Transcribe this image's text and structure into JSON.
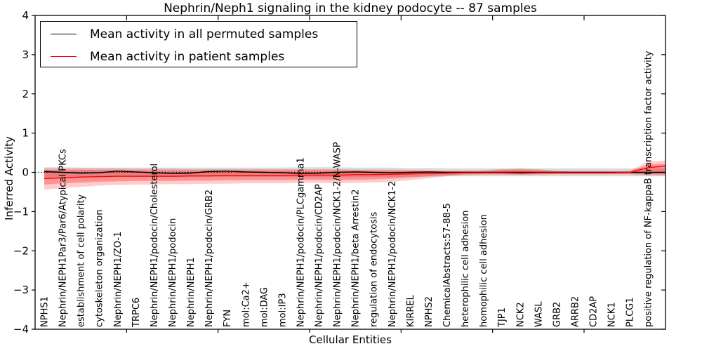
{
  "chart_data": {
    "type": "line",
    "title": "Nephrin/Neph1 signaling in the kidney podocyte -- 87 samples",
    "xlabel": "Cellular Entities",
    "ylabel": "Inferred Activity",
    "ylim": [
      -4,
      4
    ],
    "yticks": [
      -4,
      -3,
      -2,
      -1,
      0,
      1,
      2,
      3,
      4
    ],
    "x_major_ticks": [
      5,
      10,
      15,
      20,
      25,
      30
    ],
    "grid": false,
    "legend_position": "upper left",
    "zero_line": true,
    "categories": [
      "NPHS1",
      "Nephrin/NEPH1Par3/Par6/Atypical PKCs",
      "establishment of cell polarity",
      "cytoskeleton organization",
      "Nephrin/NEPH1/ZO-1",
      "TRPC6",
      "Nephrin/NEPH1/podocin/Cholesterol",
      "Nephrin/NEPH1/podocin",
      "Nephrin/NEPH1",
      "Nephrin/NEPH1/podocin/GRB2",
      "FYN",
      "mol:Ca2+",
      "mol:DAG",
      "mol:IP3",
      "Nephrin/NEPH1/podocin/PLCgamma1",
      "Nephrin/NEPH1/podocin/CD2AP",
      "Nephrin/NEPH1/podocin/NCK1-2/N-WASP",
      "Nephrin/NEPH1/beta Arrestin2",
      "regulation of endocytosis",
      "Nephrin/NEPH1/podocin/NCK1-2",
      "KIRREL",
      "NPHS2",
      "ChemicalAbstracts:57-88-5",
      "heterophilic cell adhesion",
      "homophilic cell adhesion",
      "TJP1",
      "NCK2",
      "WASL",
      "GRB2",
      "ARRB2",
      "CD2AP",
      "NCK1",
      "PLCG1",
      "positive regulation of NF-kappaB transcription factor activity"
    ],
    "series": [
      {
        "name": "Mean activity in all permuted samples",
        "color": "#000000",
        "values": [
          0.02,
          0.0,
          -0.02,
          -0.01,
          0.03,
          0.01,
          -0.01,
          -0.03,
          -0.02,
          0.02,
          0.03,
          0.01,
          0.0,
          -0.01,
          -0.03,
          -0.02,
          0.0,
          0.01,
          0.0,
          -0.01,
          0.0,
          0.01,
          0.0,
          0.0,
          0.0,
          0.0,
          0.0,
          0.0,
          0.0,
          0.0,
          0.0,
          0.0,
          0.0,
          0.0
        ]
      },
      {
        "name": "Mean activity in patient samples",
        "color": "#ff0000",
        "values": [
          -0.16,
          -0.14,
          -0.12,
          -0.11,
          -0.1,
          -0.1,
          -0.1,
          -0.1,
          -0.09,
          -0.09,
          -0.08,
          -0.08,
          -0.08,
          -0.08,
          -0.07,
          -0.07,
          -0.07,
          -0.06,
          -0.06,
          -0.05,
          -0.04,
          -0.03,
          -0.02,
          -0.01,
          -0.01,
          -0.01,
          -0.02,
          -0.01,
          -0.01,
          -0.01,
          -0.01,
          -0.01,
          0.0,
          0.12
        ]
      }
    ],
    "bands": [
      {
        "name": "permuted-samples-std-band",
        "color": "#888888",
        "opacity": 0.3,
        "top": [
          0.13,
          0.13,
          0.12,
          0.12,
          0.12,
          0.12,
          0.12,
          0.12,
          0.12,
          0.12,
          0.12,
          0.12,
          0.12,
          0.12,
          0.13,
          0.13,
          0.13,
          0.12,
          0.12,
          0.12,
          0.11,
          0.11,
          0.1,
          0.1,
          0.1,
          0.1,
          0.1,
          0.1,
          0.1,
          0.1,
          0.1,
          0.1,
          0.1,
          0.1
        ],
        "bottom": [
          -0.13,
          -0.13,
          -0.12,
          -0.12,
          -0.12,
          -0.12,
          -0.12,
          -0.12,
          -0.12,
          -0.12,
          -0.12,
          -0.12,
          -0.12,
          -0.12,
          -0.13,
          -0.13,
          -0.13,
          -0.12,
          -0.12,
          -0.12,
          -0.11,
          -0.11,
          -0.1,
          -0.1,
          -0.1,
          -0.1,
          -0.1,
          -0.1,
          -0.1,
          -0.1,
          -0.1,
          -0.1,
          -0.1,
          -0.1
        ]
      },
      {
        "name": "patient-samples-outer-band",
        "color": "#ff0000",
        "opacity": 0.2,
        "top": [
          0.1,
          0.1,
          0.1,
          0.1,
          0.1,
          0.09,
          0.09,
          0.09,
          0.08,
          0.08,
          0.08,
          0.08,
          0.08,
          0.08,
          0.08,
          0.08,
          0.08,
          0.07,
          0.07,
          0.07,
          0.06,
          0.05,
          0.04,
          0.04,
          0.05,
          0.08,
          0.1,
          0.08,
          0.04,
          0.03,
          0.03,
          0.03,
          0.04,
          0.28
        ],
        "bottom": [
          -0.44,
          -0.4,
          -0.37,
          -0.34,
          -0.32,
          -0.31,
          -0.31,
          -0.3,
          -0.3,
          -0.29,
          -0.29,
          -0.28,
          -0.28,
          -0.28,
          -0.27,
          -0.27,
          -0.28,
          -0.27,
          -0.26,
          -0.24,
          -0.2,
          -0.15,
          -0.1,
          -0.07,
          -0.06,
          -0.06,
          -0.07,
          -0.06,
          -0.05,
          -0.05,
          -0.05,
          -0.05,
          -0.05,
          -0.08
        ]
      },
      {
        "name": "patient-samples-inner-band",
        "color": "#ff0000",
        "opacity": 0.28,
        "top": [
          0.06,
          0.06,
          0.06,
          0.06,
          0.06,
          0.05,
          0.05,
          0.05,
          0.05,
          0.05,
          0.05,
          0.05,
          0.05,
          0.05,
          0.05,
          0.05,
          0.05,
          0.05,
          0.04,
          0.04,
          0.04,
          0.03,
          0.03,
          0.03,
          0.03,
          0.06,
          0.07,
          0.05,
          0.03,
          0.02,
          0.02,
          0.02,
          0.02,
          0.2
        ],
        "bottom": [
          -0.31,
          -0.28,
          -0.26,
          -0.24,
          -0.23,
          -0.22,
          -0.22,
          -0.22,
          -0.21,
          -0.21,
          -0.2,
          -0.2,
          -0.2,
          -0.2,
          -0.19,
          -0.19,
          -0.2,
          -0.19,
          -0.18,
          -0.16,
          -0.13,
          -0.1,
          -0.07,
          -0.05,
          -0.04,
          -0.04,
          -0.05,
          -0.04,
          -0.04,
          -0.04,
          -0.04,
          -0.04,
          -0.04,
          -0.05
        ]
      }
    ],
    "edge_extension": {
      "series": [
        0.0,
        0.16
      ],
      "bands": [
        {
          "top": 0.1,
          "bottom": -0.1
        },
        {
          "top": 0.3,
          "bottom": -0.08
        },
        {
          "top": 0.22,
          "bottom": -0.05
        }
      ]
    }
  }
}
